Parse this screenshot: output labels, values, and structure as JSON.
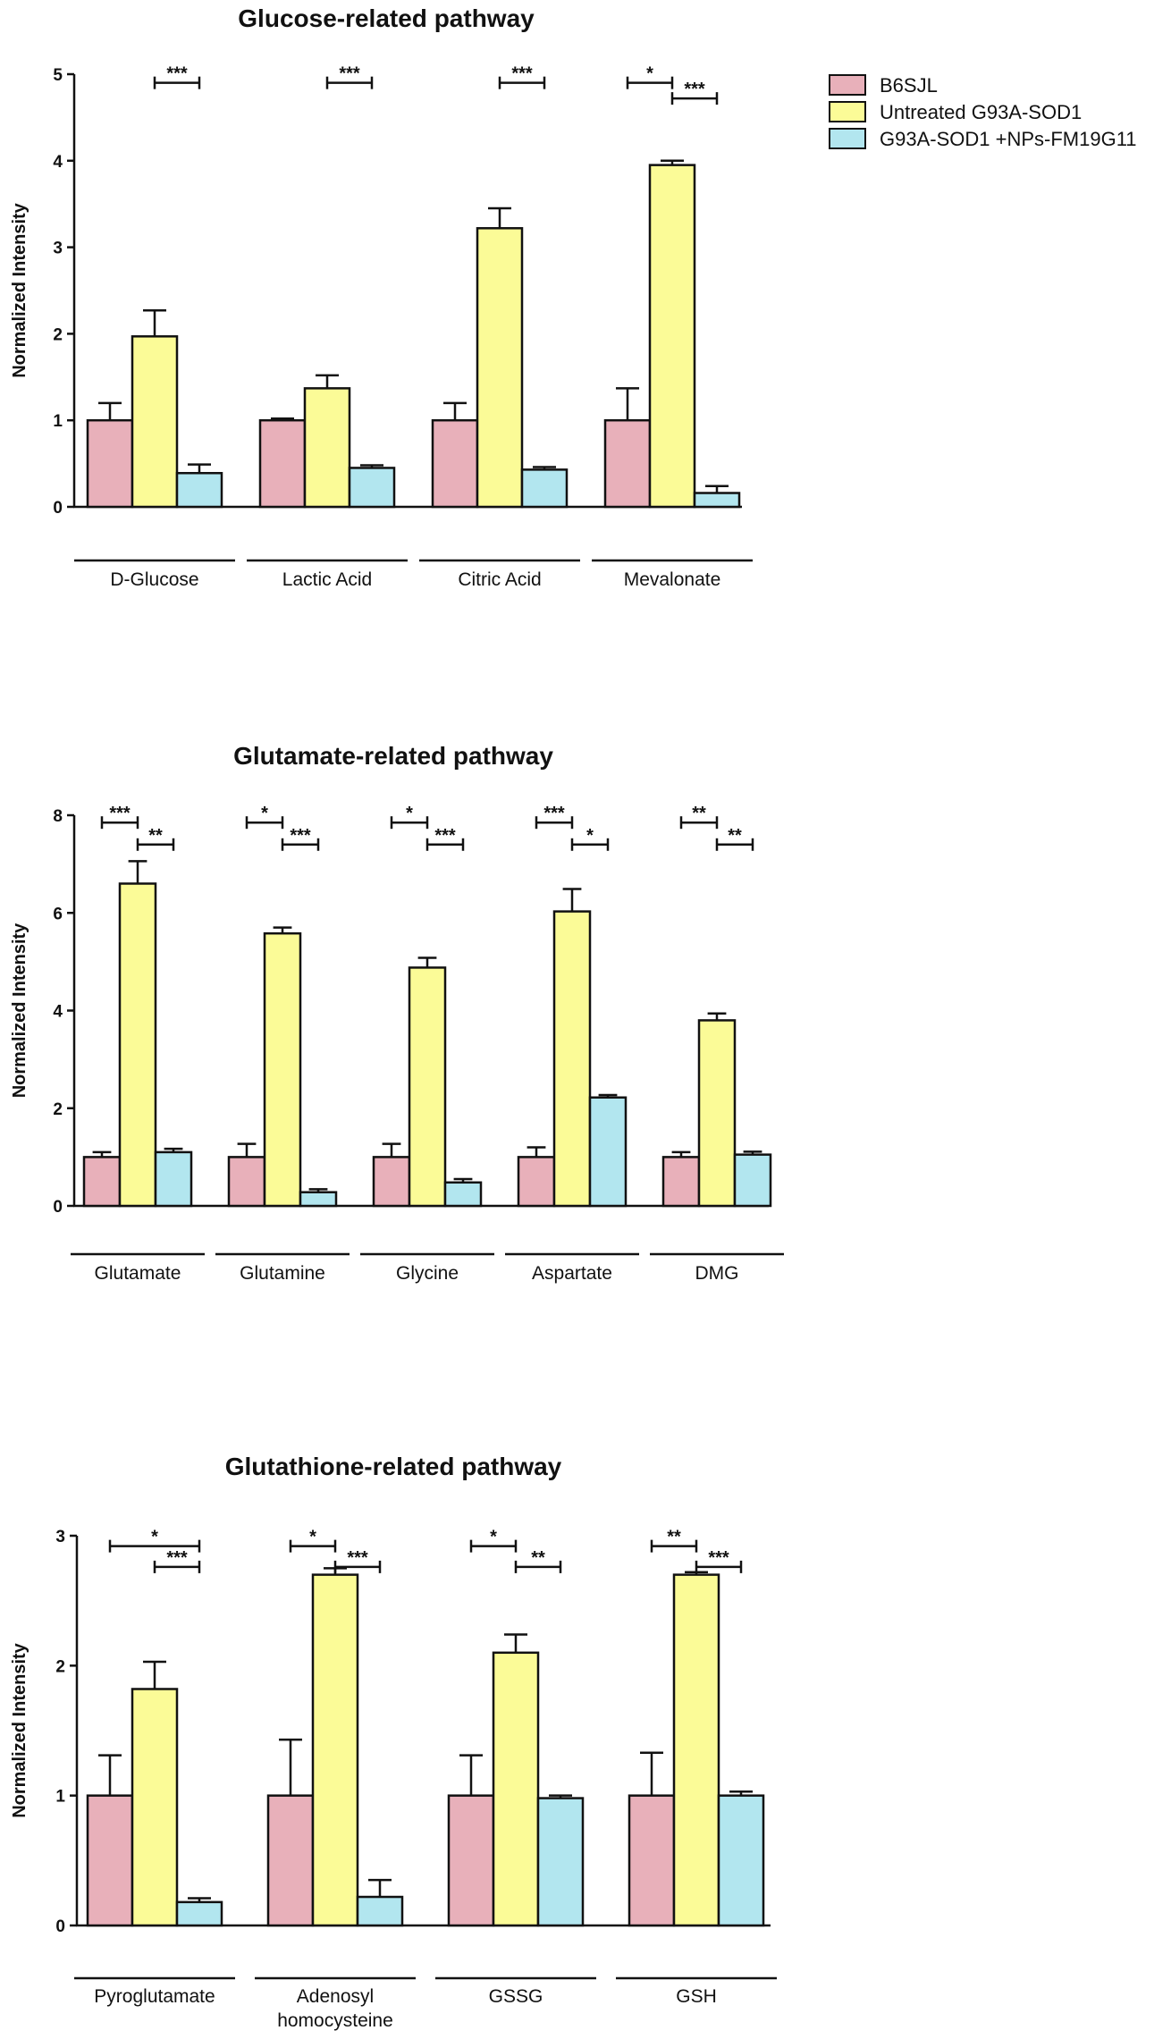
{
  "legend": {
    "entries": [
      {
        "name": "B6SJL",
        "color": "#e8b0ba"
      },
      {
        "name": "Untreated G93A-SOD1",
        "color": "#fbfb97"
      },
      {
        "name": "G93A-SOD1 +NPs-FM19G11",
        "color": "#b2e6ef"
      }
    ]
  },
  "chart_data": [
    {
      "type": "bar",
      "title": "Glucose-related pathway",
      "ylabel": "Normalized Intensity",
      "ylim": [
        0,
        5
      ],
      "yticks": [
        0,
        1,
        2,
        3,
        4,
        5
      ],
      "categories": [
        [
          "D-Glucose"
        ],
        [
          "Lactic Acid"
        ],
        [
          "Citric Acid"
        ],
        [
          "Mevalonate"
        ]
      ],
      "series": [
        {
          "name": "B6SJL",
          "color": "#e8b0ba",
          "values": [
            1.0,
            1.0,
            1.0,
            1.0
          ],
          "errors": [
            0.2,
            0.02,
            0.2,
            0.37
          ]
        },
        {
          "name": "Untreated G93A-SOD1",
          "color": "#fbfb97",
          "values": [
            1.97,
            1.37,
            3.22,
            3.95
          ],
          "errors": [
            0.3,
            0.15,
            0.23,
            0.05
          ]
        },
        {
          "name": "G93A-SOD1 +NPs-FM19G11",
          "color": "#b2e6ef",
          "values": [
            0.39,
            0.45,
            0.43,
            0.16
          ],
          "errors": [
            0.1,
            0.03,
            0.03,
            0.08
          ]
        }
      ],
      "significance": [
        {
          "category": 0,
          "from": 1,
          "to": 2,
          "label": "***",
          "y": 4.9
        },
        {
          "category": 1,
          "from": 1,
          "to": 2,
          "label": "***",
          "y": 4.9
        },
        {
          "category": 2,
          "from": 1,
          "to": 2,
          "label": "***",
          "y": 4.9
        },
        {
          "category": 3,
          "from": 0,
          "to": 1,
          "label": "*",
          "y": 4.9
        },
        {
          "category": 3,
          "from": 1,
          "to": 2,
          "label": "***",
          "y": 4.72
        }
      ]
    },
    {
      "type": "bar",
      "title": "Glutamate-related pathway",
      "ylabel": "Normalized Intensity",
      "ylim": [
        0,
        8
      ],
      "yticks": [
        0,
        2,
        4,
        6,
        8
      ],
      "categories": [
        [
          "Glutamate"
        ],
        [
          "Glutamine"
        ],
        [
          "Glycine"
        ],
        [
          "Aspartate"
        ],
        [
          "DMG"
        ]
      ],
      "series": [
        {
          "name": "B6SJL",
          "color": "#e8b0ba",
          "values": [
            1.0,
            1.0,
            1.0,
            1.0,
            1.0
          ],
          "errors": [
            0.1,
            0.27,
            0.27,
            0.2,
            0.1
          ]
        },
        {
          "name": "Untreated G93A-SOD1",
          "color": "#fbfb97",
          "values": [
            6.6,
            5.58,
            4.88,
            6.03,
            3.8
          ],
          "errors": [
            0.46,
            0.12,
            0.2,
            0.46,
            0.14
          ]
        },
        {
          "name": "G93A-SOD1 +NPs-FM19G11",
          "color": "#b2e6ef",
          "values": [
            1.1,
            0.28,
            0.48,
            2.22,
            1.05
          ],
          "errors": [
            0.07,
            0.06,
            0.07,
            0.05,
            0.06
          ]
        }
      ],
      "significance": [
        {
          "category": 0,
          "from": 0,
          "to": 1,
          "label": "***",
          "y": 7.85
        },
        {
          "category": 0,
          "from": 1,
          "to": 2,
          "label": "**",
          "y": 7.4
        },
        {
          "category": 1,
          "from": 0,
          "to": 1,
          "label": "*",
          "y": 7.85
        },
        {
          "category": 1,
          "from": 1,
          "to": 2,
          "label": "***",
          "y": 7.4
        },
        {
          "category": 2,
          "from": 0,
          "to": 1,
          "label": "*",
          "y": 7.85
        },
        {
          "category": 2,
          "from": 1,
          "to": 2,
          "label": "***",
          "y": 7.4
        },
        {
          "category": 3,
          "from": 0,
          "to": 1,
          "label": "***",
          "y": 7.85
        },
        {
          "category": 3,
          "from": 1,
          "to": 2,
          "label": "*",
          "y": 7.4
        },
        {
          "category": 4,
          "from": 0,
          "to": 1,
          "label": "**",
          "y": 7.85
        },
        {
          "category": 4,
          "from": 1,
          "to": 2,
          "label": "**",
          "y": 7.4
        }
      ]
    },
    {
      "type": "bar",
      "title": "Glutathione-related pathway",
      "ylabel": "Normalized Intensity",
      "ylim": [
        0,
        3
      ],
      "yticks": [
        0,
        1,
        2,
        3
      ],
      "categories": [
        [
          "Pyroglutamate"
        ],
        [
          "Adenosyl",
          "homocysteine"
        ],
        [
          "GSSG"
        ],
        [
          "GSH"
        ]
      ],
      "series": [
        {
          "name": "B6SJL",
          "color": "#e8b0ba",
          "values": [
            1.0,
            1.0,
            1.0,
            1.0
          ],
          "errors": [
            0.31,
            0.43,
            0.31,
            0.33
          ]
        },
        {
          "name": "Untreated G93A-SOD1",
          "color": "#fbfb97",
          "values": [
            1.82,
            2.7,
            2.1,
            2.7
          ],
          "errors": [
            0.21,
            0.05,
            0.14,
            0.02
          ]
        },
        {
          "name": "G93A-SOD1 +NPs-FM19G11",
          "color": "#b2e6ef",
          "values": [
            0.18,
            0.22,
            0.98,
            1.0
          ],
          "errors": [
            0.03,
            0.13,
            0.02,
            0.03
          ]
        }
      ],
      "significance": [
        {
          "category": 0,
          "from": 0,
          "to": 2,
          "label": "*",
          "y": 2.92
        },
        {
          "category": 0,
          "from": 1,
          "to": 2,
          "label": "***",
          "y": 2.76
        },
        {
          "category": 1,
          "from": 0,
          "to": 1,
          "label": "*",
          "y": 2.92
        },
        {
          "category": 1,
          "from": 1,
          "to": 2,
          "label": "***",
          "y": 2.76
        },
        {
          "category": 2,
          "from": 0,
          "to": 1,
          "label": "*",
          "y": 2.92
        },
        {
          "category": 2,
          "from": 1,
          "to": 2,
          "label": "**",
          "y": 2.76
        },
        {
          "category": 3,
          "from": 0,
          "to": 1,
          "label": "**",
          "y": 2.92
        },
        {
          "category": 3,
          "from": 1,
          "to": 2,
          "label": "***",
          "y": 2.76
        }
      ]
    }
  ]
}
